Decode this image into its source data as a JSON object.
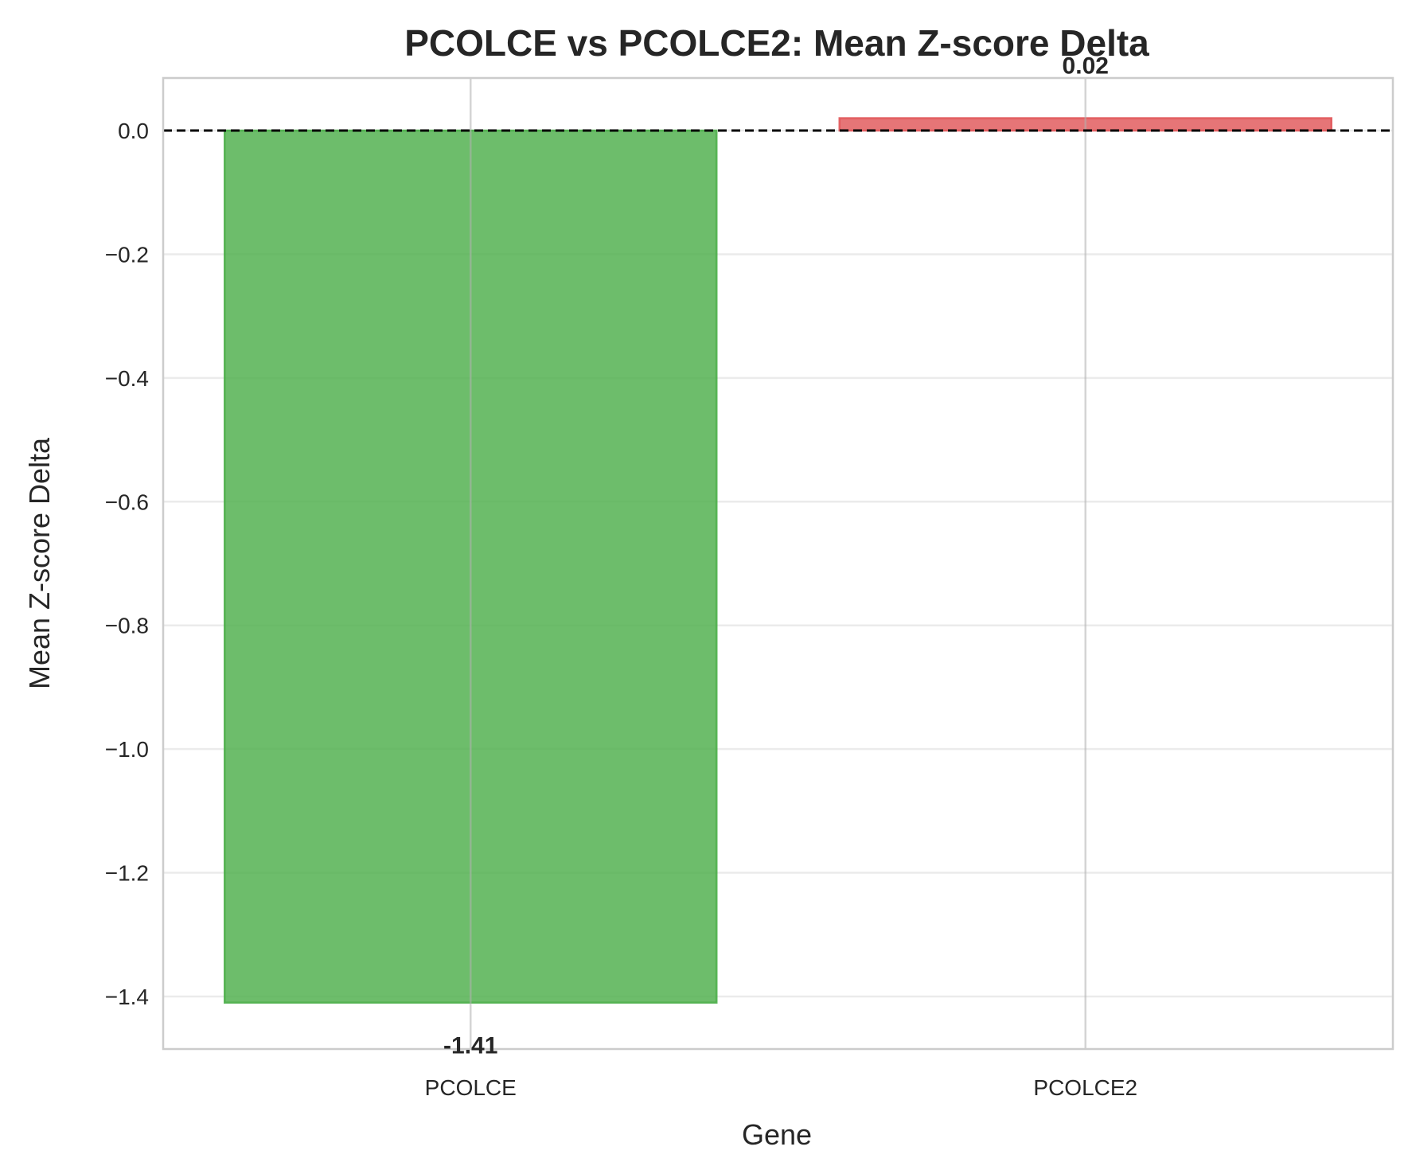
{
  "chart_data": {
    "type": "bar",
    "title": "PCOLCE vs PCOLCE2: Mean Z-score Delta",
    "xlabel": "Gene",
    "ylabel": "Mean Z-score Delta",
    "categories": [
      "PCOLCE",
      "PCOLCE2"
    ],
    "values": [
      -1.41,
      0.02
    ],
    "data_labels": [
      "-1.41",
      "0.02"
    ],
    "bar_colors": [
      "#4daf4a",
      "#e15759"
    ],
    "ylim": [
      -1.485,
      0.085
    ],
    "yticks": [
      0.0,
      -0.2,
      -0.4,
      -0.6,
      -0.8,
      -1.0,
      -1.2,
      -1.4
    ],
    "ytick_labels": [
      "0.0",
      "−0.2",
      "−0.4",
      "−0.6",
      "−0.8",
      "−1.0",
      "−1.2",
      "−1.4"
    ],
    "reference_line": 0,
    "grid": true,
    "legend": "none"
  }
}
